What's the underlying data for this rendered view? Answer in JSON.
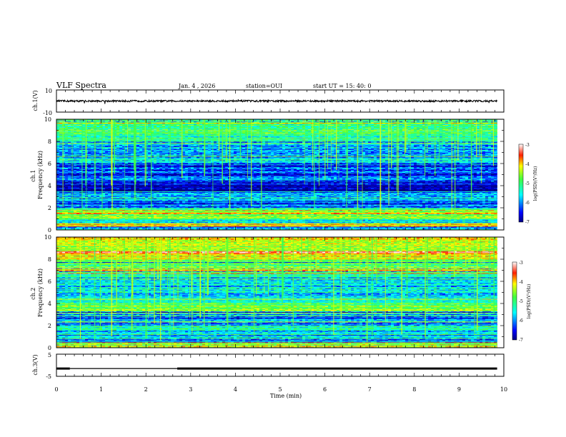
{
  "header": {
    "title": "VLF Spectra",
    "date": "Jan. 4 , 2026",
    "station": "station=OUI",
    "start": "start UT = 15: 40: 0"
  },
  "colorbar": {
    "label": "log(PSD)(V²/Hz)",
    "ticks": [
      "-3",
      "-4",
      "-5",
      "-6",
      "-7"
    ]
  },
  "colors": {
    "deep": "#000040",
    "low": "#001fc8",
    "mid": "#00c8ff",
    "high": "#40ff80",
    "peak": "#ff3020"
  },
  "chart_data": [
    {
      "type": "line",
      "name": "ch1-waveform",
      "ylabel": "ch.1(V)",
      "yticks": [
        "10",
        "-10"
      ],
      "ylim": [
        -10,
        10
      ],
      "xlim": [
        0,
        10
      ],
      "approx_level": 0,
      "grid": false
    },
    {
      "type": "heatmap",
      "name": "ch1-spectrogram",
      "ylabel": "ch.1\nFrequency (kHz)",
      "yticks": [
        "0",
        "2",
        "4",
        "6",
        "8",
        "10"
      ],
      "ylim": [
        0,
        10
      ],
      "xlim": [
        0,
        10
      ],
      "clim": [
        -7,
        -3
      ],
      "data_end_min": 9.85,
      "bands": [
        {
          "f": [
            0,
            0.3
          ],
          "level": -6.0
        },
        {
          "f": [
            0.3,
            0.6
          ],
          "level": -4.2
        },
        {
          "f": [
            0.6,
            1.0
          ],
          "level": -5.6
        },
        {
          "f": [
            1.0,
            2.0
          ],
          "level": -5.0
        },
        {
          "f": [
            2.0,
            2.6
          ],
          "level": -6.2
        },
        {
          "f": [
            2.6,
            3.4
          ],
          "level": -5.8
        },
        {
          "f": [
            3.4,
            4.4
          ],
          "level": -6.7
        },
        {
          "f": [
            4.4,
            6.0
          ],
          "level": -6.3
        },
        {
          "f": [
            6.0,
            8.0
          ],
          "level": -6.0
        },
        {
          "f": [
            8.0,
            10.0
          ],
          "level": -5.3
        }
      ]
    },
    {
      "type": "heatmap",
      "name": "ch2-spectrogram",
      "ylabel": "ch.2\nFrequency (kHz)",
      "yticks": [
        "0",
        "2",
        "4",
        "6",
        "8",
        "10"
      ],
      "ylim": [
        0,
        10
      ],
      "xlim": [
        0,
        10
      ],
      "clim": [
        -7,
        -3
      ],
      "data_end_min": 9.85,
      "bands": [
        {
          "f": [
            0,
            0.5
          ],
          "level": -5.2
        },
        {
          "f": [
            0.5,
            1.2
          ],
          "level": -5.9
        },
        {
          "f": [
            1.2,
            2.0
          ],
          "level": -5.5
        },
        {
          "f": [
            2.0,
            3.3
          ],
          "level": -6.0
        },
        {
          "f": [
            3.3,
            3.9
          ],
          "level": -4.7
        },
        {
          "f": [
            3.9,
            6.5
          ],
          "level": -5.7
        },
        {
          "f": [
            6.5,
            8.0
          ],
          "level": -5.1
        },
        {
          "f": [
            8.0,
            10.0
          ],
          "level": -4.5
        }
      ]
    },
    {
      "type": "line",
      "name": "ch3-waveform",
      "ylabel": "ch.3(V)",
      "yticks": [
        "5",
        "-5"
      ],
      "ylim": [
        -5,
        5
      ],
      "xlim": [
        0,
        10
      ],
      "approx_level": -1.5,
      "segments": [
        {
          "x": [
            0,
            0.3
          ],
          "thickness": "thick"
        },
        {
          "x": [
            0.3,
            2.7
          ],
          "thickness": "thin"
        },
        {
          "x": [
            2.7,
            9.85
          ],
          "thickness": "thick"
        }
      ],
      "xlabel": "Time (min)",
      "xticks": [
        "0",
        "1",
        "2",
        "3",
        "4",
        "5",
        "6",
        "7",
        "8",
        "9",
        "10"
      ]
    }
  ]
}
